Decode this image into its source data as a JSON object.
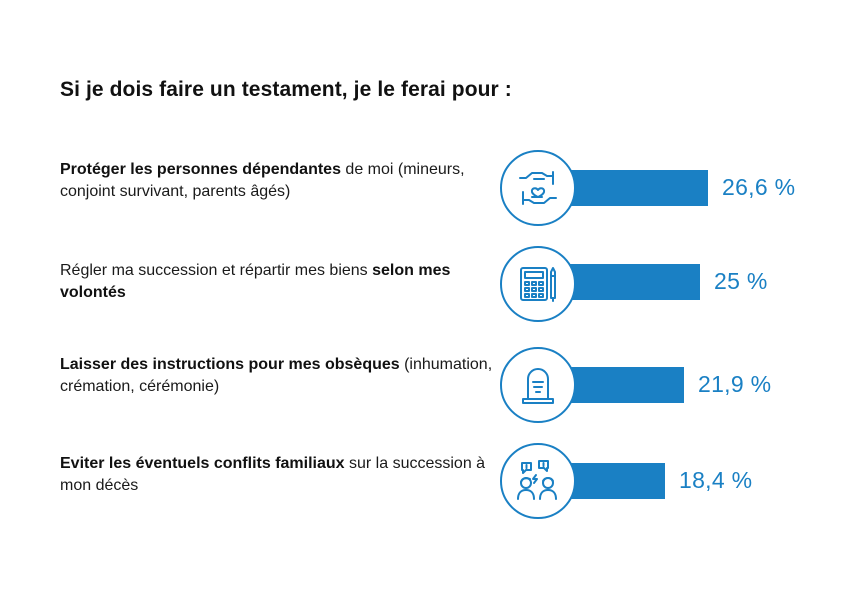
{
  "title": "Si je dois faire un testament, je le ferai pour :",
  "rows": [
    {
      "bold_before": "Protéger les personnes dépendantes",
      "normal": " de moi (mineurs, conjoint survivant, parents âgés)",
      "bold_after": "",
      "icon": "hands-heart-icon",
      "value_text": "26,6 %"
    },
    {
      "bold_before": "",
      "normal": "Régler ma succession et répartir mes biens ",
      "bold_after": "selon mes volontés",
      "icon": "calculator-pencil-icon",
      "value_text": "25 %"
    },
    {
      "bold_before": "Laisser des instructions pour mes obsèques",
      "normal": " (inhumation, crémation, cérémonie)",
      "bold_after": "",
      "icon": "gravestone-icon",
      "value_text": "21,9 %"
    },
    {
      "bold_before": "Eviter les éventuels conflits familiaux",
      "normal": " sur la succession à mon décès",
      "bold_after": "",
      "icon": "family-conflict-icon",
      "value_text": "18,4 %"
    }
  ],
  "chart_data": {
    "type": "bar",
    "orientation": "horizontal",
    "title": "Si je dois faire un testament, je le ferai pour :",
    "categories": [
      "Protéger les personnes dépendantes de moi (mineurs, conjoint survivant, parents âgés)",
      "Régler ma succession et répartir mes biens selon mes volontés",
      "Laisser des instructions pour mes obsèques (inhumation, crémation, cérémonie)",
      "Eviter les éventuels conflits familiaux sur la succession à mon décès"
    ],
    "values": [
      26.6,
      25,
      21.9,
      18.4
    ],
    "unit": "%",
    "bar_color": "#1a80c4",
    "grid": false,
    "legend": "none"
  }
}
